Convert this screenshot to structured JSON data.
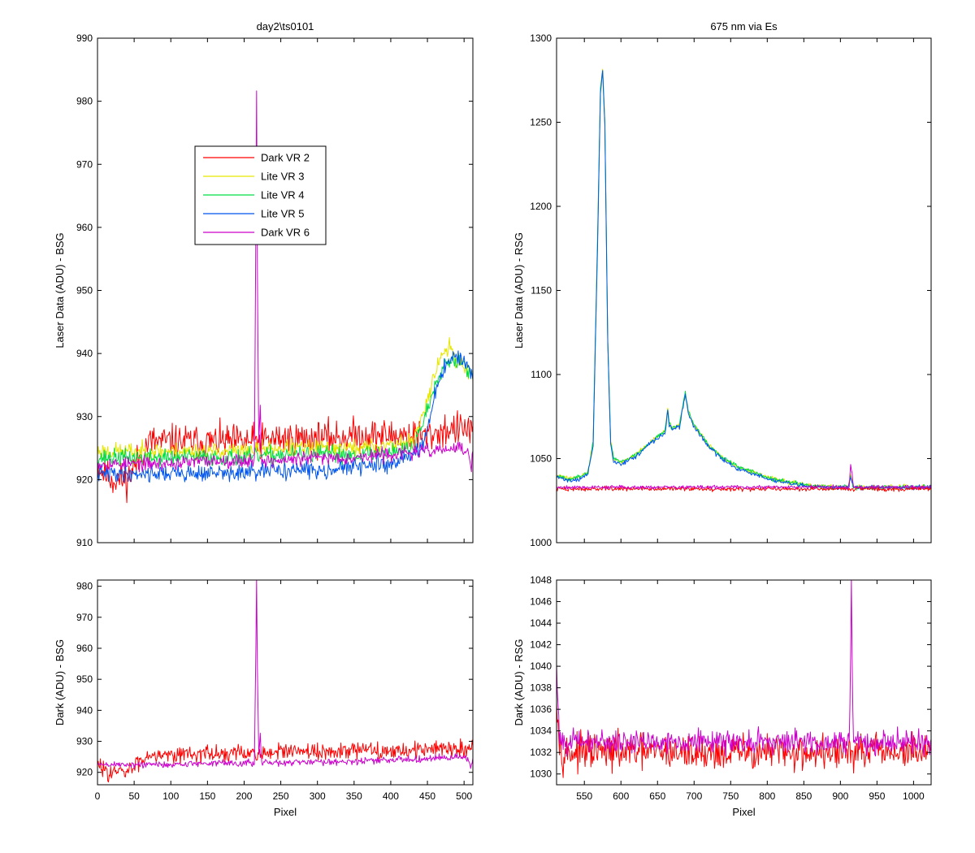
{
  "figure": {
    "colors": {
      "Dark VR 2": "#ff0000",
      "Lite VR 3": "#e6e600",
      "Lite VR 4": "#00dd44",
      "Lite VR 5": "#0055ee",
      "Dark VR 6": "#cc00cc"
    }
  },
  "chart_data": [
    {
      "id": "top-left",
      "type": "line",
      "title": "day2\\ts0101",
      "xlabel": "",
      "ylabel": "Laser Data (ADU) - BSG",
      "xlim": [
        0,
        512
      ],
      "ylim": [
        910,
        990
      ],
      "xticks": [
        0,
        50,
        100,
        150,
        200,
        250,
        300,
        350,
        400,
        450,
        500
      ],
      "yticks": [
        910,
        920,
        930,
        940,
        950,
        960,
        970,
        980,
        990
      ],
      "show_xtick_labels": false,
      "grid": false,
      "legend": {
        "placement": "upper-center",
        "entries": [
          "Dark VR 2",
          "Lite VR 3",
          "Lite VR 4",
          "Lite VR 5",
          "Dark VR 6"
        ]
      },
      "series": [
        {
          "name": "Dark VR 2",
          "x": [
            0,
            10,
            20,
            30,
            40,
            50,
            60,
            70,
            100,
            150,
            200,
            250,
            300,
            350,
            400,
            450,
            480,
            500,
            512
          ],
          "y": [
            922,
            921,
            920,
            920,
            920,
            922,
            924,
            926,
            926,
            926,
            926,
            926.5,
            926.5,
            927,
            927,
            927,
            928,
            928,
            928
          ],
          "noise": 2.0,
          "seed": 11
        },
        {
          "name": "Lite VR 3",
          "x": [
            0,
            50,
            100,
            150,
            200,
            250,
            300,
            350,
            400,
            430,
            440,
            450,
            460,
            470,
            480,
            490,
            500,
            505,
            512
          ],
          "y": [
            924.5,
            924.5,
            924.5,
            924.5,
            924.5,
            925,
            925,
            925,
            925.5,
            926,
            929,
            933,
            937,
            940,
            941,
            939,
            938,
            937,
            937
          ],
          "noise": 1.0,
          "seed": 23
        },
        {
          "name": "Lite VR 4",
          "x": [
            0,
            50,
            100,
            150,
            200,
            250,
            300,
            350,
            400,
            430,
            440,
            450,
            460,
            470,
            480,
            490,
            500,
            505,
            512
          ],
          "y": [
            923.5,
            923.5,
            923.5,
            923.5,
            923.5,
            924,
            924,
            924,
            924.5,
            925,
            928,
            931,
            935,
            938,
            939,
            939,
            939,
            937,
            936
          ],
          "noise": 1.0,
          "seed": 37
        },
        {
          "name": "Lite VR 5",
          "x": [
            0,
            50,
            100,
            150,
            200,
            250,
            300,
            350,
            400,
            430,
            440,
            450,
            460,
            470,
            480,
            490,
            500,
            505,
            512
          ],
          "y": [
            921,
            921,
            921,
            921,
            921,
            921.5,
            921.5,
            922,
            922.5,
            924,
            925,
            928,
            933,
            937,
            939,
            939.5,
            939,
            937,
            936
          ],
          "noise": 1.0,
          "seed": 41
        },
        {
          "name": "Dark VR 6",
          "x": [
            0,
            50,
            100,
            150,
            200,
            214,
            216,
            217,
            218,
            220,
            222,
            224,
            250,
            300,
            350,
            400,
            450,
            500,
            505,
            510,
            512
          ],
          "y": [
            922.5,
            922.5,
            922.5,
            923,
            923,
            923,
            960,
            981,
            955,
            926,
            932,
            923,
            923,
            923.5,
            923.5,
            924,
            924.5,
            925,
            924,
            922,
            925
          ],
          "noise": 0.8,
          "seed": 53
        }
      ]
    },
    {
      "id": "top-right",
      "type": "line",
      "title": "675 nm via Es",
      "xlabel": "",
      "ylabel": "Laser Data (ADU) - RSG",
      "xlim": [
        512,
        1024
      ],
      "ylim": [
        1000,
        1300
      ],
      "xticks": [
        550,
        600,
        650,
        700,
        750,
        800,
        850,
        900,
        950,
        1000
      ],
      "yticks": [
        1000,
        1050,
        1100,
        1150,
        1200,
        1250,
        1300
      ],
      "show_xtick_labels": false,
      "grid": false,
      "series": [
        {
          "name": "Lite VR 3",
          "x": [
            512,
            530,
            545,
            555,
            562,
            568,
            572,
            575,
            578,
            582,
            586,
            590,
            600,
            620,
            640,
            660,
            664,
            666,
            670,
            680,
            688,
            692,
            700,
            720,
            740,
            760,
            780,
            800,
            830,
            860,
            890,
            910,
            914,
            918,
            940,
            970,
            1000,
            1024
          ],
          "y": [
            1040,
            1038,
            1039,
            1042,
            1060,
            1180,
            1270,
            1282,
            1250,
            1120,
            1060,
            1050,
            1048,
            1052,
            1060,
            1066,
            1080,
            1072,
            1068,
            1070,
            1090,
            1078,
            1070,
            1058,
            1050,
            1045,
            1042,
            1039,
            1036,
            1034,
            1033,
            1033,
            1040,
            1033,
            1033,
            1033,
            1033,
            1033
          ],
          "noise": 1.0,
          "seed": 61
        },
        {
          "name": "Lite VR 4",
          "x": [
            512,
            530,
            545,
            555,
            562,
            568,
            572,
            575,
            578,
            582,
            586,
            590,
            600,
            620,
            640,
            660,
            664,
            666,
            670,
            680,
            688,
            692,
            700,
            720,
            740,
            760,
            780,
            800,
            830,
            860,
            890,
            910,
            914,
            918,
            940,
            970,
            1000,
            1024
          ],
          "y": [
            1040,
            1038,
            1039,
            1042,
            1060,
            1180,
            1270,
            1281,
            1250,
            1120,
            1060,
            1050,
            1048,
            1052,
            1060,
            1066,
            1080,
            1072,
            1068,
            1070,
            1090,
            1078,
            1070,
            1058,
            1050,
            1045,
            1042,
            1039,
            1036,
            1034,
            1033,
            1033,
            1040,
            1033,
            1033,
            1033,
            1033,
            1033
          ],
          "noise": 1.0,
          "seed": 67
        },
        {
          "name": "Lite VR 5",
          "x": [
            512,
            530,
            545,
            555,
            562,
            568,
            572,
            575,
            578,
            582,
            586,
            590,
            600,
            620,
            640,
            660,
            664,
            666,
            670,
            680,
            688,
            692,
            700,
            720,
            740,
            760,
            780,
            800,
            830,
            860,
            890,
            910,
            914,
            918,
            940,
            970,
            1000,
            1024
          ],
          "y": [
            1039,
            1037,
            1038,
            1041,
            1058,
            1175,
            1268,
            1280,
            1248,
            1118,
            1058,
            1048,
            1047,
            1051,
            1059,
            1065,
            1078,
            1070,
            1067,
            1069,
            1088,
            1077,
            1069,
            1057,
            1049,
            1044,
            1041,
            1038,
            1035,
            1033,
            1033,
            1033,
            1039,
            1033,
            1033,
            1033,
            1033,
            1033
          ],
          "noise": 1.0,
          "seed": 71
        },
        {
          "name": "Dark VR 2",
          "x": [
            512,
            600,
            700,
            800,
            900,
            1000,
            1024
          ],
          "y": [
            1032,
            1032,
            1032,
            1032,
            1032,
            1032,
            1032
          ],
          "noise": 1.0,
          "seed": 73
        },
        {
          "name": "Dark VR 6",
          "x": [
            512,
            600,
            700,
            800,
            900,
            912,
            914,
            916,
            918,
            1000,
            1024
          ],
          "y": [
            1033,
            1033,
            1033,
            1033,
            1033,
            1033,
            1046,
            1041,
            1033,
            1033,
            1033
          ],
          "noise": 0.8,
          "seed": 79
        }
      ]
    },
    {
      "id": "bottom-left",
      "type": "line",
      "title": "",
      "xlabel": "Pixel",
      "ylabel": "Dark (ADU) - BSG",
      "xlim": [
        0,
        512
      ],
      "ylim": [
        916,
        982
      ],
      "xticks": [
        0,
        50,
        100,
        150,
        200,
        250,
        300,
        350,
        400,
        450,
        500
      ],
      "yticks": [
        920,
        930,
        940,
        950,
        960,
        970,
        980
      ],
      "show_xtick_labels": true,
      "grid": false,
      "series": [
        {
          "name": "Dark VR 2",
          "x": [
            0,
            10,
            20,
            30,
            40,
            50,
            60,
            70,
            100,
            150,
            200,
            250,
            300,
            350,
            400,
            450,
            500,
            512
          ],
          "y": [
            922,
            921,
            920,
            920,
            920,
            922,
            924,
            926,
            926,
            926,
            926,
            926.5,
            926.5,
            927,
            927,
            927.5,
            928,
            928
          ],
          "noise": 2.0,
          "seed": 83
        },
        {
          "name": "Dark VR 6",
          "x": [
            0,
            50,
            100,
            150,
            200,
            214,
            216,
            217,
            218,
            220,
            222,
            224,
            250,
            300,
            350,
            400,
            450,
            500,
            505,
            510,
            512
          ],
          "y": [
            922.5,
            922.5,
            922.5,
            923,
            923,
            923,
            960,
            981,
            955,
            926,
            932,
            923,
            923,
            923.5,
            923.5,
            924,
            924.5,
            925,
            924,
            922,
            925
          ],
          "noise": 0.8,
          "seed": 89
        }
      ]
    },
    {
      "id": "bottom-right",
      "type": "line",
      "title": "",
      "xlabel": "Pixel",
      "ylabel": "Dark (ADU) - RSG",
      "xlim": [
        512,
        1024
      ],
      "ylim": [
        1029,
        1048
      ],
      "xticks": [
        550,
        600,
        650,
        700,
        750,
        800,
        850,
        900,
        950,
        1000
      ],
      "yticks": [
        1030,
        1032,
        1034,
        1036,
        1038,
        1040,
        1042,
        1044,
        1046,
        1048
      ],
      "show_xtick_labels": true,
      "grid": false,
      "series": [
        {
          "name": "Dark VR 2",
          "x": [
            512,
            514,
            516,
            520,
            600,
            700,
            800,
            900,
            1000,
            1024
          ],
          "y": [
            1038,
            1035,
            1033,
            1032,
            1032,
            1032,
            1032,
            1032,
            1032,
            1032
          ],
          "noise": 1.2,
          "seed": 97
        },
        {
          "name": "Dark VR 6",
          "x": [
            512,
            514,
            516,
            520,
            600,
            700,
            800,
            900,
            912,
            914,
            915,
            916,
            918,
            1000,
            1024
          ],
          "y": [
            1040,
            1036,
            1034,
            1033,
            1033,
            1033,
            1033,
            1033,
            1033,
            1041,
            1047,
            1041,
            1033,
            1033,
            1033
          ],
          "noise": 0.8,
          "seed": 101
        }
      ]
    }
  ]
}
